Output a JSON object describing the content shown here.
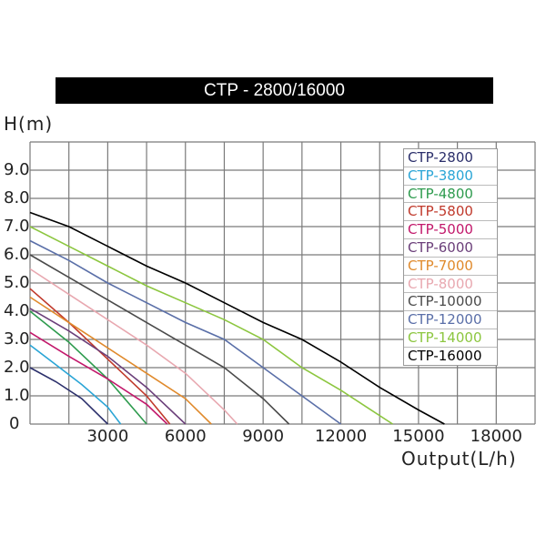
{
  "chart_data": {
    "type": "line",
    "title": "CTP - 2800/16000",
    "xlabel": "Output(L/h)",
    "ylabel": "H(m)",
    "xlim": [
      0,
      19500
    ],
    "ylim": [
      0,
      10
    ],
    "grid": true,
    "legend_position": "upper right",
    "x_ticks": [
      "3000",
      "6000",
      "9000",
      "12000",
      "15000",
      "18000"
    ],
    "x_tick_values": [
      3000,
      6000,
      9000,
      12000,
      15000,
      18000
    ],
    "y_ticks": [
      "0",
      "1.0",
      "2.0",
      "3.0",
      "4.0",
      "5.0",
      "6.0",
      "7.0",
      "8.0",
      "9.0"
    ],
    "y_tick_values": [
      0,
      1,
      2,
      3,
      4,
      5,
      6,
      7,
      8,
      9
    ],
    "series": [
      {
        "name": "CTP-2800",
        "color": "#2b2f6b",
        "points": [
          [
            0,
            2.0
          ],
          [
            1000,
            1.5
          ],
          [
            2000,
            0.9
          ],
          [
            3000,
            0
          ]
        ]
      },
      {
        "name": "CTP-3800",
        "color": "#2aa5d6",
        "points": [
          [
            0,
            2.8
          ],
          [
            1000,
            2.1
          ],
          [
            2000,
            1.4
          ],
          [
            3000,
            0.6
          ],
          [
            3500,
            0
          ]
        ]
      },
      {
        "name": "CTP-4800",
        "color": "#2e9b4e",
        "points": [
          [
            0,
            4.0
          ],
          [
            1500,
            2.9
          ],
          [
            3000,
            1.6
          ],
          [
            4500,
            0
          ]
        ]
      },
      {
        "name": "CTP-5800",
        "color": "#c0392b",
        "points": [
          [
            0,
            4.8
          ],
          [
            1500,
            3.6
          ],
          [
            3000,
            2.3
          ],
          [
            4500,
            1.0
          ],
          [
            5400,
            0
          ]
        ]
      },
      {
        "name": "CTP-5000",
        "color": "#c2186b",
        "points": [
          [
            0,
            3.25
          ],
          [
            1500,
            2.4
          ],
          [
            3000,
            1.6
          ],
          [
            4500,
            0.7
          ],
          [
            5300,
            0
          ]
        ]
      },
      {
        "name": "CTP-6000",
        "color": "#6b3f7a",
        "points": [
          [
            0,
            4.1
          ],
          [
            1500,
            3.3
          ],
          [
            3000,
            2.4
          ],
          [
            4500,
            1.3
          ],
          [
            6000,
            0
          ]
        ]
      },
      {
        "name": "CTP-7000",
        "color": "#e08a2c",
        "points": [
          [
            0,
            4.5
          ],
          [
            1500,
            3.6
          ],
          [
            3000,
            2.7
          ],
          [
            4500,
            1.8
          ],
          [
            6000,
            0.9
          ],
          [
            7000,
            0
          ]
        ]
      },
      {
        "name": "CTP-8000",
        "color": "#e8a8b0",
        "points": [
          [
            0,
            5.5
          ],
          [
            1500,
            4.6
          ],
          [
            3000,
            3.7
          ],
          [
            4500,
            2.8
          ],
          [
            6000,
            1.8
          ],
          [
            7500,
            0.5
          ],
          [
            8000,
            0
          ]
        ]
      },
      {
        "name": "CTP-10000",
        "color": "#4a4a4a",
        "points": [
          [
            0,
            6.0
          ],
          [
            1500,
            5.2
          ],
          [
            3000,
            4.4
          ],
          [
            4500,
            3.6
          ],
          [
            6000,
            2.8
          ],
          [
            7500,
            2.0
          ],
          [
            9000,
            0.9
          ],
          [
            10000,
            0
          ]
        ]
      },
      {
        "name": "CTP-12000",
        "color": "#5a6fa8",
        "points": [
          [
            0,
            6.5
          ],
          [
            1500,
            5.8
          ],
          [
            3000,
            5.0
          ],
          [
            4500,
            4.3
          ],
          [
            6000,
            3.6
          ],
          [
            7500,
            3.0
          ],
          [
            9000,
            2.0
          ],
          [
            10500,
            1.0
          ],
          [
            12000,
            0
          ]
        ]
      },
      {
        "name": "CTP-14000",
        "color": "#8cc63f",
        "points": [
          [
            0,
            7.0
          ],
          [
            1500,
            6.3
          ],
          [
            3000,
            5.6
          ],
          [
            4500,
            4.9
          ],
          [
            6000,
            4.3
          ],
          [
            7500,
            3.7
          ],
          [
            9000,
            3.0
          ],
          [
            10500,
            2.0
          ],
          [
            12000,
            1.2
          ],
          [
            13000,
            0.6
          ],
          [
            14000,
            0
          ]
        ]
      },
      {
        "name": "CTP-16000",
        "color": "#000000",
        "points": [
          [
            0,
            7.5
          ],
          [
            1500,
            7.0
          ],
          [
            3000,
            6.3
          ],
          [
            4500,
            5.6
          ],
          [
            6000,
            5.0
          ],
          [
            7500,
            4.3
          ],
          [
            9000,
            3.6
          ],
          [
            10500,
            3.0
          ],
          [
            12000,
            2.2
          ],
          [
            13500,
            1.3
          ],
          [
            15000,
            0.5
          ],
          [
            16000,
            0
          ]
        ]
      }
    ]
  },
  "header": {
    "title": "CTP - 2800/16000"
  },
  "axes": {
    "ylabel": "H(m)",
    "xlabel": "Output(L/h)"
  }
}
